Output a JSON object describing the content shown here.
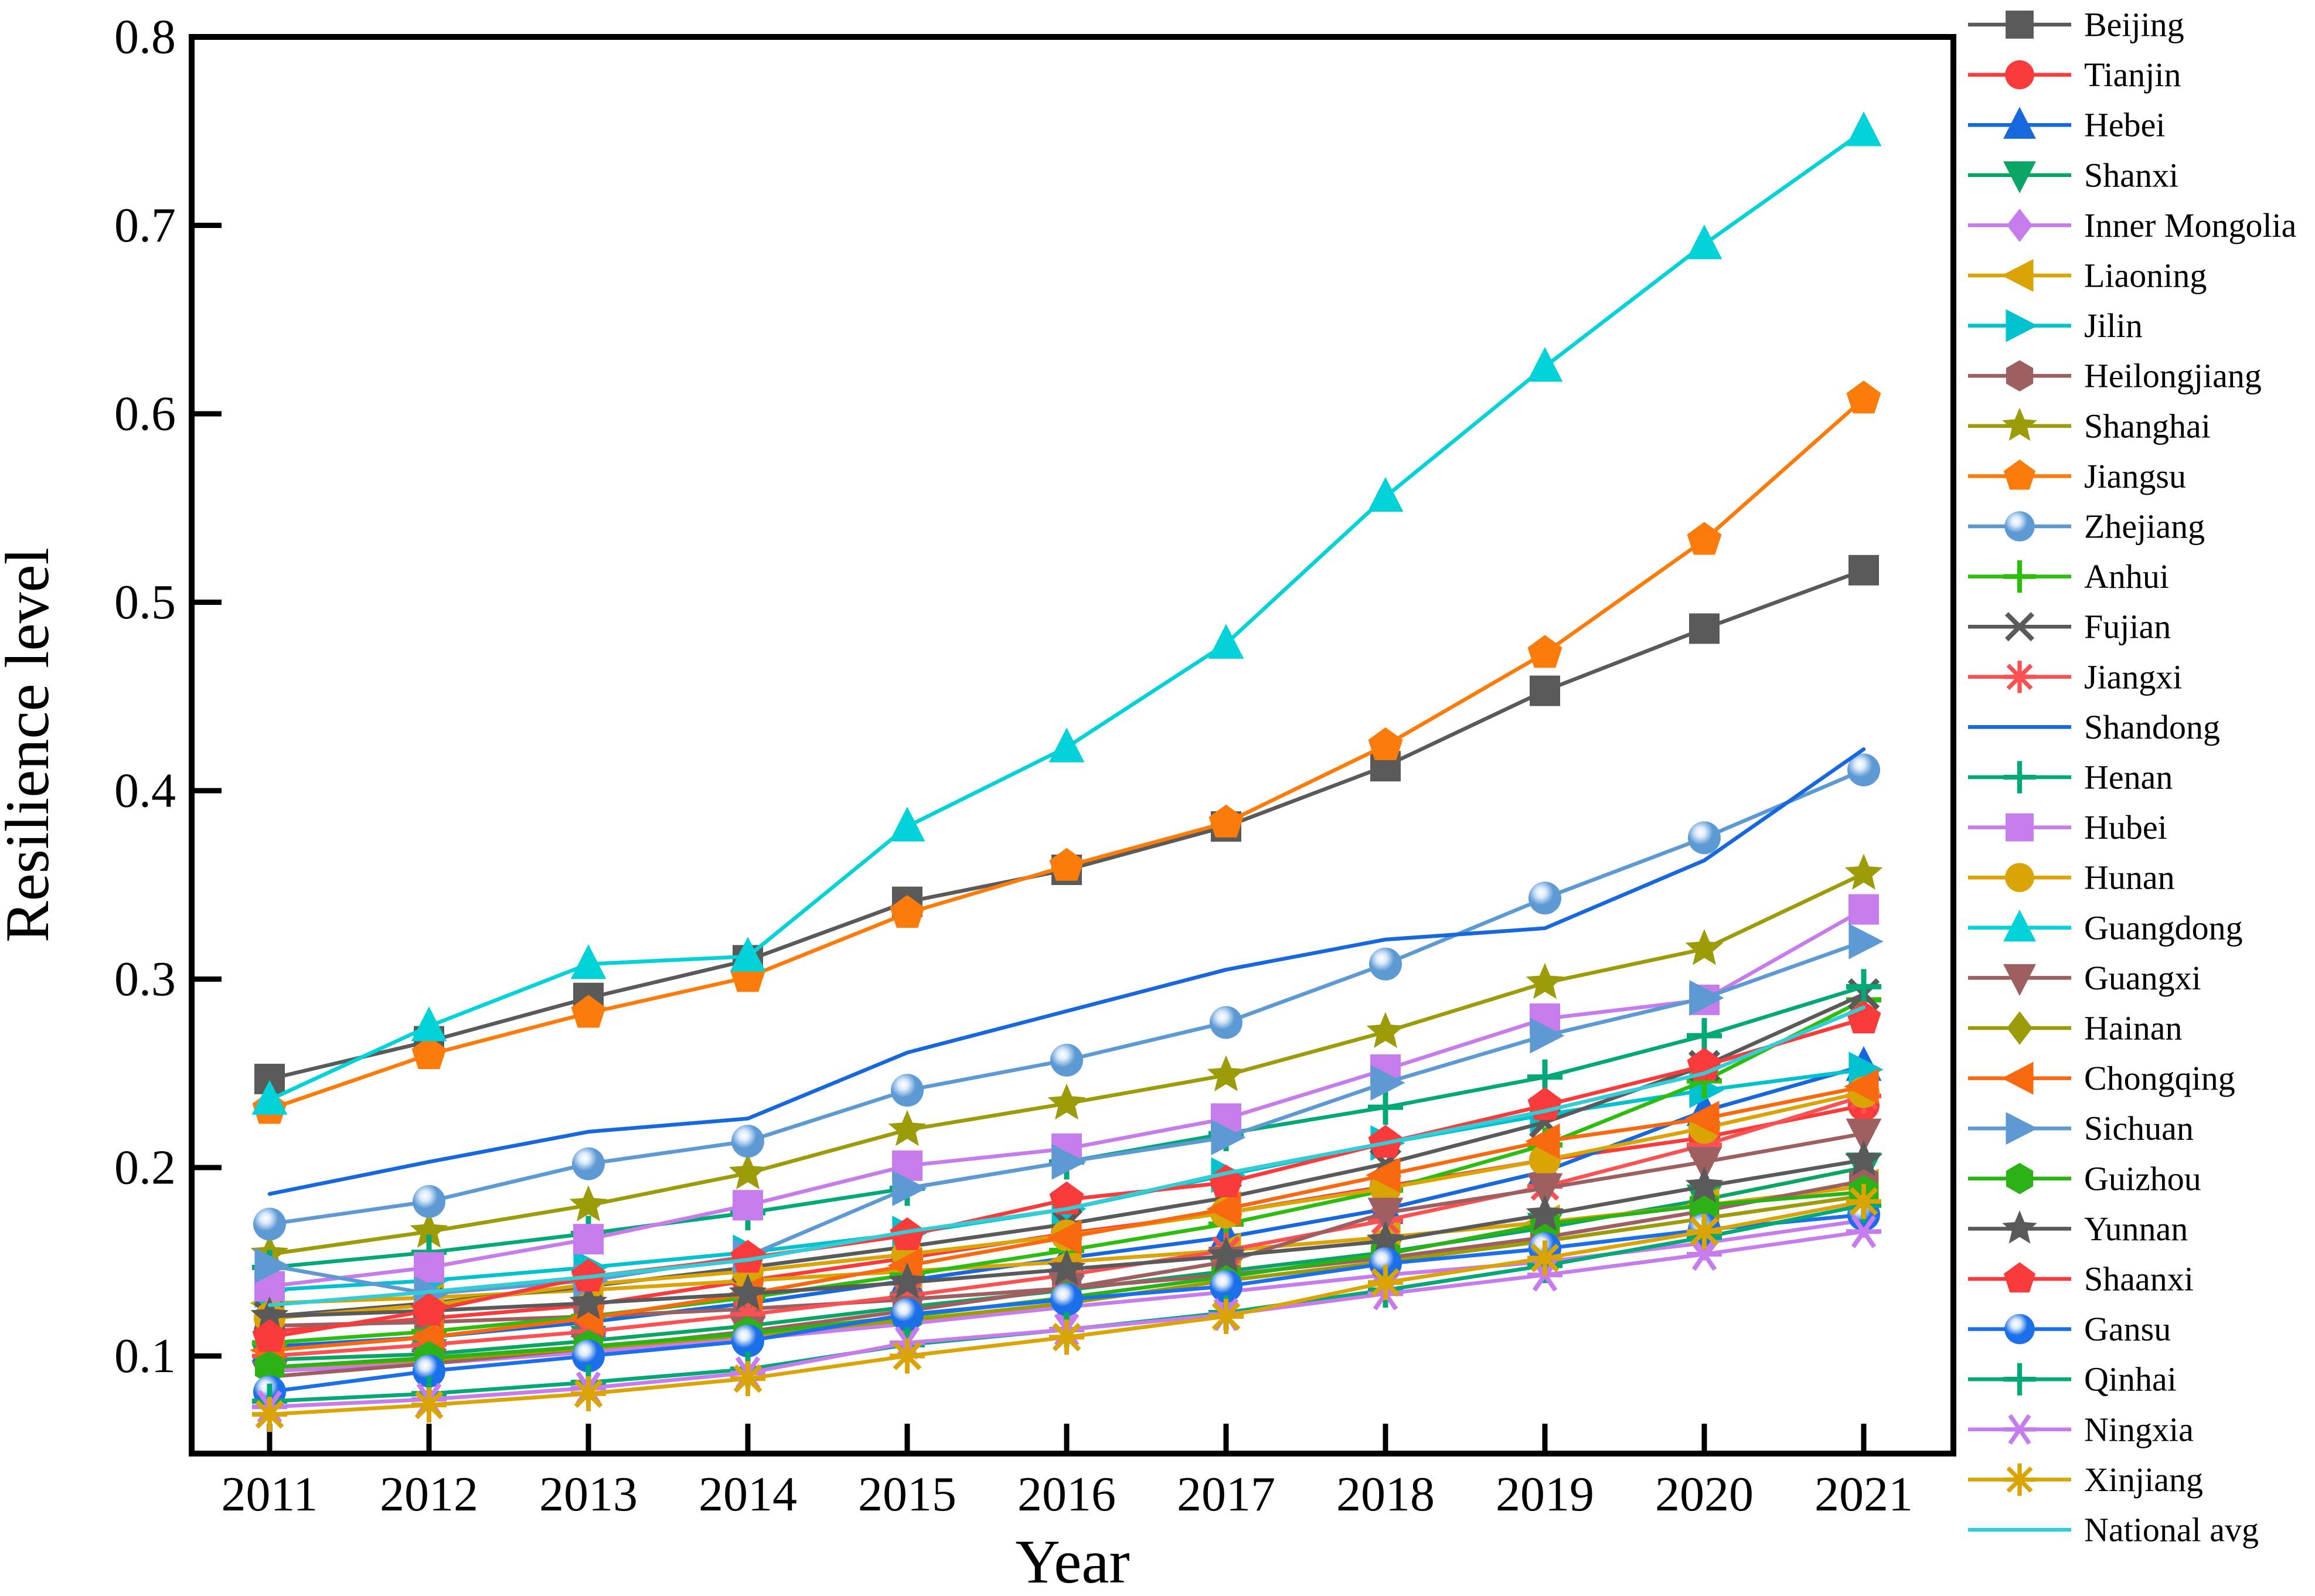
{
  "chart_data": {
    "type": "line",
    "title": "",
    "xlabel": "Year",
    "ylabel": "Resilience level",
    "x": [
      2011,
      2012,
      2013,
      2014,
      2015,
      2016,
      2017,
      2018,
      2019,
      2020,
      2021
    ],
    "ylim": [
      0.045,
      0.8
    ],
    "yticks": [
      0.1,
      0.2,
      0.3,
      0.4,
      0.5,
      0.6,
      0.7,
      0.8
    ],
    "grid": false,
    "legend_position": "right",
    "frame_color": "#000000",
    "background": "#ffffff",
    "series": [
      {
        "name": "Beijing",
        "color": "#5A5A5A",
        "marker": "square",
        "values": [
          0.247,
          0.267,
          0.29,
          0.31,
          0.341,
          0.358,
          0.381,
          0.413,
          0.453,
          0.486,
          0.517
        ]
      },
      {
        "name": "Tianjin",
        "color": "#F93B3B",
        "marker": "circle",
        "values": [
          0.113,
          0.12,
          0.127,
          0.14,
          0.152,
          0.165,
          0.176,
          0.19,
          0.204,
          0.216,
          0.233
        ]
      },
      {
        "name": "Hebei",
        "color": "#1668DC",
        "marker": "triangle-up",
        "values": [
          0.105,
          0.11,
          0.118,
          0.128,
          0.14,
          0.152,
          0.163,
          0.178,
          0.198,
          0.23,
          0.254
        ]
      },
      {
        "name": "Shanxi",
        "color": "#0AA564",
        "marker": "triangle-down",
        "values": [
          0.098,
          0.101,
          0.108,
          0.116,
          0.126,
          0.135,
          0.145,
          0.155,
          0.168,
          0.183,
          0.2
        ]
      },
      {
        "name": "Inner Mongolia",
        "color": "#C77CEC",
        "marker": "diamond",
        "values": [
          0.092,
          0.096,
          0.102,
          0.109,
          0.117,
          0.126,
          0.134,
          0.143,
          0.15,
          0.16,
          0.172
        ]
      },
      {
        "name": "Liaoning",
        "color": "#D9A404",
        "marker": "triangle-left",
        "values": [
          0.128,
          0.131,
          0.135,
          0.14,
          0.145,
          0.15,
          0.156,
          0.163,
          0.171,
          0.18,
          0.19
        ]
      },
      {
        "name": "Jilin",
        "color": "#00C2CE",
        "marker": "triangle-right",
        "values": [
          0.135,
          0.14,
          0.147,
          0.155,
          0.165,
          0.178,
          0.196,
          0.213,
          0.228,
          0.241,
          0.252
        ]
      },
      {
        "name": "Heilongjiang",
        "color": "#9D5F5F",
        "marker": "hexagon",
        "values": [
          0.116,
          0.118,
          0.121,
          0.125,
          0.13,
          0.136,
          0.143,
          0.152,
          0.163,
          0.177,
          0.193
        ]
      },
      {
        "name": "Shanghai",
        "color": "#9C9C08",
        "marker": "star",
        "values": [
          0.154,
          0.166,
          0.18,
          0.197,
          0.22,
          0.234,
          0.249,
          0.272,
          0.298,
          0.316,
          0.356
        ]
      },
      {
        "name": "Jiangsu",
        "color": "#FB7C0B",
        "marker": "pentagon",
        "values": [
          0.231,
          0.26,
          0.282,
          0.301,
          0.335,
          0.36,
          0.383,
          0.424,
          0.473,
          0.533,
          0.608
        ]
      },
      {
        "name": "Zhejiang",
        "color": "#5D9AD4",
        "marker": "sphere",
        "values": [
          0.17,
          0.182,
          0.202,
          0.214,
          0.241,
          0.257,
          0.277,
          0.308,
          0.343,
          0.375,
          0.411
        ]
      },
      {
        "name": "Anhui",
        "color": "#2EBC0F",
        "marker": "plus",
        "values": [
          0.107,
          0.113,
          0.121,
          0.131,
          0.143,
          0.156,
          0.17,
          0.188,
          0.212,
          0.246,
          0.289
        ]
      },
      {
        "name": "Fujian",
        "color": "#5A5A5A",
        "marker": "x",
        "values": [
          0.121,
          0.128,
          0.137,
          0.147,
          0.158,
          0.17,
          0.184,
          0.202,
          0.224,
          0.254,
          0.292
        ]
      },
      {
        "name": "Jiangxi",
        "color": "#FA5252",
        "marker": "asterisk8",
        "values": [
          0.1,
          0.106,
          0.113,
          0.122,
          0.132,
          0.143,
          0.156,
          0.172,
          0.19,
          0.212,
          0.238
        ]
      },
      {
        "name": "Shandong",
        "color": "#1668DC",
        "marker": "none",
        "values": [
          0.186,
          0.203,
          0.219,
          0.226,
          0.261,
          0.283,
          0.305,
          0.321,
          0.327,
          0.363,
          0.422
        ]
      },
      {
        "name": "Henan",
        "color": "#00A878",
        "marker": "plus",
        "values": [
          0.147,
          0.155,
          0.165,
          0.176,
          0.189,
          0.203,
          0.218,
          0.232,
          0.248,
          0.27,
          0.296
        ]
      },
      {
        "name": "Hubei",
        "color": "#C77CEC",
        "marker": "square",
        "values": [
          0.137,
          0.147,
          0.162,
          0.18,
          0.201,
          0.21,
          0.226,
          0.252,
          0.279,
          0.289,
          0.337
        ]
      },
      {
        "name": "Hunan",
        "color": "#D9A404",
        "marker": "circle",
        "values": [
          0.12,
          0.127,
          0.138,
          0.145,
          0.154,
          0.164,
          0.176,
          0.189,
          0.204,
          0.221,
          0.24
        ]
      },
      {
        "name": "Guangdong",
        "color": "#00D2D8",
        "marker": "triangle-up",
        "values": [
          0.236,
          0.275,
          0.308,
          0.312,
          0.381,
          0.423,
          0.478,
          0.556,
          0.625,
          0.69,
          0.75
        ]
      },
      {
        "name": "Guangxi",
        "color": "#9D5F5F",
        "marker": "triangle-down",
        "values": [
          0.089,
          0.096,
          0.104,
          0.113,
          0.124,
          0.136,
          0.15,
          0.176,
          0.189,
          0.203,
          0.218
        ]
      },
      {
        "name": "Hainan",
        "color": "#9C9C08",
        "marker": "diamond",
        "values": [
          0.094,
          0.098,
          0.104,
          0.111,
          0.119,
          0.128,
          0.14,
          0.15,
          0.161,
          0.173,
          0.185
        ]
      },
      {
        "name": "Chongqing",
        "color": "#F96A10",
        "marker": "triangle-left",
        "values": [
          0.103,
          0.11,
          0.12,
          0.133,
          0.148,
          0.163,
          0.178,
          0.196,
          0.214,
          0.226,
          0.243
        ]
      },
      {
        "name": "Sichuan",
        "color": "#5D9AD4",
        "marker": "triangle-right",
        "values": [
          0.148,
          0.133,
          0.14,
          0.153,
          0.189,
          0.203,
          0.216,
          0.245,
          0.27,
          0.29,
          0.32
        ]
      },
      {
        "name": "Guizhou",
        "color": "#2CB216",
        "marker": "hexagon",
        "values": [
          0.094,
          0.099,
          0.105,
          0.112,
          0.121,
          0.131,
          0.142,
          0.154,
          0.17,
          0.18,
          0.187
        ]
      },
      {
        "name": "Yunnan",
        "color": "#5A5A5A",
        "marker": "star",
        "values": [
          0.121,
          0.124,
          0.128,
          0.133,
          0.139,
          0.146,
          0.153,
          0.161,
          0.175,
          0.19,
          0.204
        ]
      },
      {
        "name": "Shaanxi",
        "color": "#F93B3B",
        "marker": "pentagon",
        "values": [
          0.11,
          0.124,
          0.142,
          0.152,
          0.164,
          0.183,
          0.192,
          0.213,
          0.233,
          0.254,
          0.279
        ]
      },
      {
        "name": "Gansu",
        "color": "#1B6FE8",
        "marker": "sphere",
        "values": [
          0.081,
          0.092,
          0.1,
          0.108,
          0.122,
          0.13,
          0.137,
          0.149,
          0.157,
          0.167,
          0.175
        ]
      },
      {
        "name": "Qinhai",
        "color": "#00A878",
        "marker": "plus",
        "values": [
          0.076,
          0.08,
          0.086,
          0.093,
          0.106,
          0.114,
          0.123,
          0.135,
          0.148,
          0.163,
          0.18
        ]
      },
      {
        "name": "Ningxia",
        "color": "#C77CEC",
        "marker": "asterisk6",
        "values": [
          0.073,
          0.077,
          0.083,
          0.091,
          0.107,
          0.114,
          0.122,
          0.133,
          0.143,
          0.154,
          0.166
        ]
      },
      {
        "name": "Xinjiang",
        "color": "#D9A404",
        "marker": "asterisk8",
        "values": [
          0.069,
          0.074,
          0.08,
          0.088,
          0.1,
          0.11,
          0.121,
          0.139,
          0.152,
          0.166,
          0.182
        ]
      },
      {
        "name": "National avg",
        "color": "#35CCD6",
        "marker": "none",
        "values": [
          0.127,
          0.134,
          0.142,
          0.151,
          0.166,
          0.178,
          0.197,
          0.213,
          0.23,
          0.25,
          0.285
        ]
      }
    ]
  }
}
